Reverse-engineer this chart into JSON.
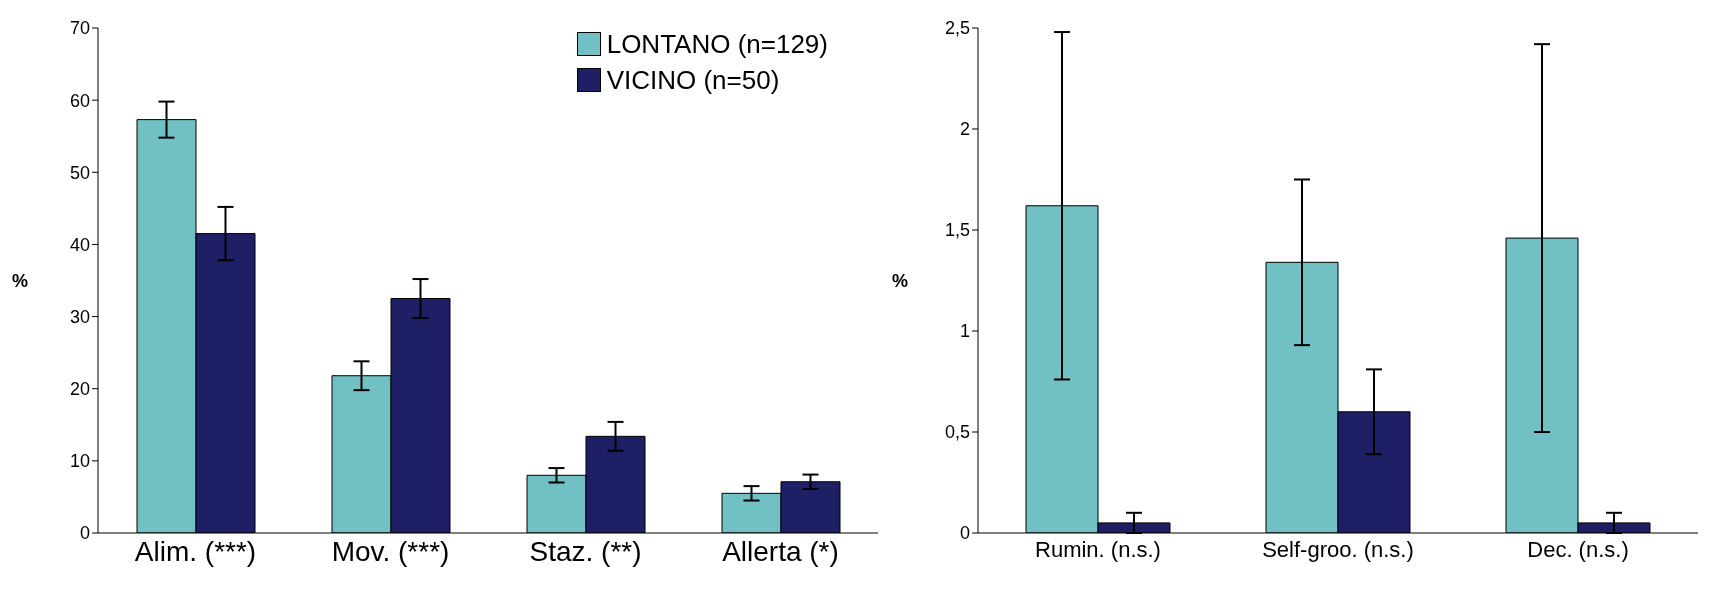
{
  "chart_data": [
    {
      "type": "bar",
      "ylabel": "%",
      "categories": [
        "Alim. (***)",
        "Mov. (***)",
        "Staz. (**)",
        "Allerta (*)"
      ],
      "ylim": [
        0,
        70
      ],
      "yticks": [
        0,
        10,
        20,
        30,
        40,
        50,
        60,
        70
      ],
      "legend": "top right",
      "series": [
        {
          "name": "LONTANO (n=129)",
          "color": "#70c0c4",
          "values": [
            57.3,
            21.8,
            8.0,
            5.5
          ],
          "errors": [
            2.5,
            2.0,
            1.0,
            1.0
          ]
        },
        {
          "name": "VICINO (n=50)",
          "color": "#1f1f66",
          "values": [
            41.5,
            32.5,
            13.4,
            7.1
          ],
          "errors": [
            3.7,
            2.7,
            2.0,
            1.0
          ]
        }
      ]
    },
    {
      "type": "bar",
      "ylabel": "%",
      "categories": [
        "Rumin. (n.s.)",
        "Self-groo. (n.s.)",
        "Dec. (n.s.)"
      ],
      "ylim": [
        0,
        2.5
      ],
      "yticks": [
        0,
        {
          "value": 0.5,
          "label": "0,5"
        },
        1,
        {
          "value": 1.5,
          "label": "1,5"
        },
        2,
        {
          "value": 2.5,
          "label": "2,5"
        }
      ],
      "series": [
        {
          "color": "#70c0c4",
          "values": [
            1.62,
            1.34,
            1.46
          ],
          "errors": [
            0.86,
            0.41,
            0.96
          ]
        },
        {
          "color": "#1f1f66",
          "values": [
            0.05,
            0.6,
            0.05
          ],
          "errors": [
            0.05,
            0.21,
            0.05
          ]
        }
      ]
    }
  ]
}
